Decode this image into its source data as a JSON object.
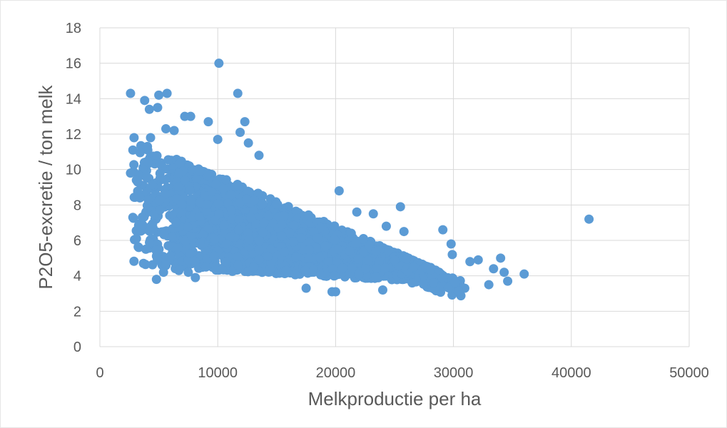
{
  "chart_data": {
    "type": "scatter",
    "title": "",
    "xlabel": "Melkproductie per ha",
    "ylabel": "P2O5-excretie / ton melk",
    "xlim": [
      0,
      50000
    ],
    "ylim": [
      0,
      18
    ],
    "xticks": [
      0,
      10000,
      20000,
      30000,
      40000,
      50000
    ],
    "yticks": [
      0,
      2,
      4,
      6,
      8,
      10,
      12,
      14,
      16,
      18
    ],
    "grid": true,
    "legend": "none",
    "marker_color": "#5B9BD5",
    "series": [
      {
        "points": [
          [
            2600,
            14.3
          ],
          [
            3800,
            13.9
          ],
          [
            4200,
            13.4
          ],
          [
            4900,
            13.5
          ],
          [
            5000,
            14.2
          ],
          [
            5700,
            14.3
          ],
          [
            10100,
            16.0
          ],
          [
            11700,
            14.3
          ],
          [
            2900,
            11.8
          ],
          [
            2800,
            11.1
          ],
          [
            2600,
            9.8
          ],
          [
            3100,
            9.4
          ],
          [
            4300,
            11.8
          ],
          [
            4100,
            10.4
          ],
          [
            5600,
            12.3
          ],
          [
            6300,
            12.2
          ],
          [
            7200,
            13.0
          ],
          [
            7700,
            13.0
          ],
          [
            9200,
            12.7
          ],
          [
            10000,
            11.7
          ],
          [
            11900,
            12.1
          ],
          [
            12300,
            12.7
          ],
          [
            12600,
            11.5
          ],
          [
            13500,
            10.8
          ],
          [
            2800,
            7.3
          ],
          [
            3100,
            6.1
          ],
          [
            3300,
            5.6
          ],
          [
            3400,
            8.4
          ],
          [
            3700,
            4.7
          ],
          [
            3900,
            5.5
          ],
          [
            4100,
            8.3
          ],
          [
            4800,
            3.8
          ],
          [
            5400,
            4.2
          ],
          [
            5800,
            5.7
          ],
          [
            6700,
            4.3
          ],
          [
            7500,
            4.2
          ],
          [
            8100,
            3.9
          ],
          [
            9000,
            4.5
          ],
          [
            20300,
            8.8
          ],
          [
            21800,
            7.6
          ],
          [
            23200,
            7.5
          ],
          [
            24300,
            6.8
          ],
          [
            25500,
            7.9
          ],
          [
            25800,
            6.5
          ],
          [
            29100,
            6.6
          ],
          [
            29800,
            5.8
          ],
          [
            29900,
            5.2
          ],
          [
            19700,
            3.1
          ],
          [
            20000,
            3.1
          ],
          [
            24000,
            3.2
          ],
          [
            31400,
            4.8
          ],
          [
            32100,
            4.9
          ],
          [
            33000,
            3.5
          ],
          [
            33400,
            4.4
          ],
          [
            34000,
            5.0
          ],
          [
            34300,
            4.2
          ],
          [
            34600,
            3.7
          ],
          [
            36000,
            4.1
          ],
          [
            41500,
            7.2
          ],
          [
            17500,
            3.3
          ],
          [
            26500,
            3.6
          ],
          [
            28300,
            3.6
          ]
        ]
      }
    ],
    "clusters": [
      {
        "cx": 8000,
        "cy": 7.8,
        "sx": 2800,
        "sy": 1.8,
        "n": 700
      },
      {
        "cx": 13000,
        "cy": 6.4,
        "sx": 2800,
        "sy": 1.3,
        "n": 700
      },
      {
        "cx": 18500,
        "cy": 5.5,
        "sx": 2800,
        "sy": 0.95,
        "n": 600
      },
      {
        "cx": 23500,
        "cy": 4.8,
        "sx": 2500,
        "sy": 0.7,
        "n": 450
      },
      {
        "cx": 27500,
        "cy": 4.4,
        "sx": 1800,
        "sy": 0.55,
        "n": 200
      }
    ]
  }
}
